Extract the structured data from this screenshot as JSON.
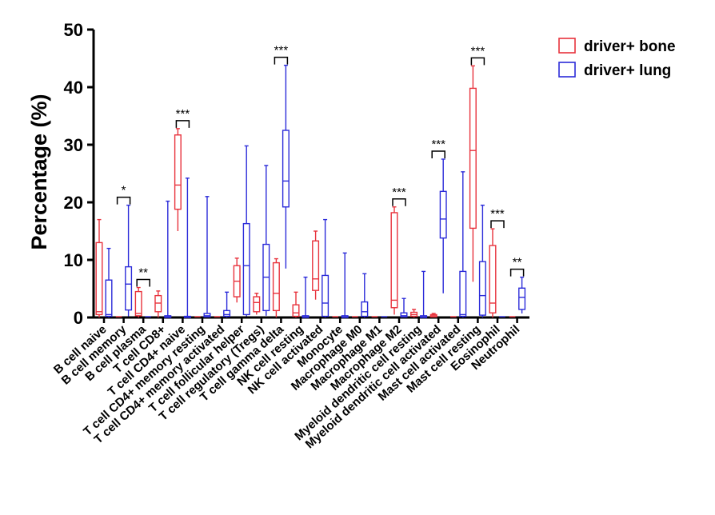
{
  "chart_data": {
    "type": "box",
    "title": "",
    "xlabel": "",
    "ylabel": "Percentage (%)",
    "ylim": [
      0,
      50
    ],
    "yticks": [
      0,
      10,
      20,
      30,
      40,
      50
    ],
    "grid": false,
    "legend_position": "top-right",
    "categories": [
      "B cell naive",
      "B cell memory",
      "B cell plasma",
      "T cell CD8+",
      "T cell CD4+ naive",
      "T cell CD4+ memory resting",
      "T cell CD4+ memory activated",
      "T cell follicular helper",
      "T cell regulatory (Tregs)",
      "T cell gamma delta",
      "NK cell resting",
      "NK cell activated",
      "Monocyte",
      "Macrophage M0",
      "Macrophage M1",
      "Macrophage M2",
      "Myeloid dendritic cell resting",
      "Myeloid dendritic cell activated",
      "Mast cell activated",
      "Mast cell resting",
      "Eosinophil",
      "Neutrophil"
    ],
    "series": [
      {
        "name": "driver+ bone",
        "color": "#e8323c",
        "boxes": [
          {
            "min": 0,
            "q1": 0.5,
            "median": 1.0,
            "q3": 13.0,
            "max": 17.0
          },
          {
            "min": 0,
            "q1": 0,
            "median": 0,
            "q3": 0,
            "max": 0
          },
          {
            "min": 0,
            "q1": 0.3,
            "median": 0.7,
            "q3": 4.5,
            "max": 5.2
          },
          {
            "min": 0,
            "q1": 1.0,
            "median": 2.5,
            "q3": 3.8,
            "max": 4.6
          },
          {
            "min": 15.0,
            "q1": 18.8,
            "median": 23.0,
            "q3": 31.7,
            "max": 32.8
          },
          {
            "min": 0,
            "q1": 0,
            "median": 0,
            "q3": 0,
            "max": 0
          },
          {
            "min": 0,
            "q1": 0,
            "median": 0,
            "q3": 0,
            "max": 0
          },
          {
            "min": 2.6,
            "q1": 3.6,
            "median": 6.3,
            "q3": 9.0,
            "max": 10.3
          },
          {
            "min": 0.5,
            "q1": 1.0,
            "median": 2.6,
            "q3": 3.6,
            "max": 4.2
          },
          {
            "min": 0,
            "q1": 1.2,
            "median": 4.2,
            "q3": 9.5,
            "max": 10.2
          },
          {
            "min": 0,
            "q1": 0.2,
            "median": 0.8,
            "q3": 2.2,
            "max": 4.4
          },
          {
            "min": 3.1,
            "q1": 4.7,
            "median": 6.7,
            "q3": 13.3,
            "max": 15.0
          },
          {
            "min": 0,
            "q1": 0,
            "median": 0,
            "q3": 0,
            "max": 0
          },
          {
            "min": 0,
            "q1": 0,
            "median": 0,
            "q3": 0,
            "max": 0
          },
          {
            "min": 0,
            "q1": 0,
            "median": 0,
            "q3": 0,
            "max": 0
          },
          {
            "min": 0.5,
            "q1": 1.7,
            "median": 3.0,
            "q3": 18.2,
            "max": 19.2
          },
          {
            "min": 0,
            "q1": 0.2,
            "median": 0.5,
            "q3": 0.9,
            "max": 1.4
          },
          {
            "min": 0,
            "q1": 0.1,
            "median": 0.3,
            "q3": 0.5,
            "max": 0.7
          },
          {
            "min": 0,
            "q1": 0,
            "median": 0,
            "q3": 0,
            "max": 0
          },
          {
            "min": 6.2,
            "q1": 15.5,
            "median": 29.0,
            "q3": 39.8,
            "max": 43.7
          },
          {
            "min": 0,
            "q1": 0.8,
            "median": 2.5,
            "q3": 12.5,
            "max": 15.4
          },
          {
            "min": 0,
            "q1": 0,
            "median": 0,
            "q3": 0,
            "max": 0
          }
        ]
      },
      {
        "name": "driver+ lung",
        "color": "#2b2bd9",
        "boxes": [
          {
            "min": 0,
            "q1": 0.2,
            "median": 0.5,
            "q3": 6.5,
            "max": 12.0
          },
          {
            "min": 0.2,
            "q1": 1.3,
            "median": 5.8,
            "q3": 8.8,
            "max": 19.5
          },
          {
            "min": 0,
            "q1": 0,
            "median": 0,
            "q3": 0,
            "max": 0
          },
          {
            "min": 0,
            "q1": 0,
            "median": 0.1,
            "q3": 0.3,
            "max": 20.2
          },
          {
            "min": 0,
            "q1": 0,
            "median": 0.1,
            "q3": 0.2,
            "max": 24.2
          },
          {
            "min": 0,
            "q1": 0.1,
            "median": 0.3,
            "q3": 0.7,
            "max": 21.0
          },
          {
            "min": 0,
            "q1": 0.2,
            "median": 0.5,
            "q3": 1.2,
            "max": 4.4
          },
          {
            "min": 0.2,
            "q1": 0.5,
            "median": 9.0,
            "q3": 16.3,
            "max": 29.8
          },
          {
            "min": 0.3,
            "q1": 1.2,
            "median": 7.0,
            "q3": 12.7,
            "max": 26.4
          },
          {
            "min": 8.5,
            "q1": 19.2,
            "median": 23.7,
            "q3": 32.5,
            "max": 43.8
          },
          {
            "min": 0,
            "q1": 0,
            "median": 0.1,
            "q3": 0.3,
            "max": 7.0
          },
          {
            "min": 0,
            "q1": 0.2,
            "median": 2.5,
            "q3": 7.3,
            "max": 17.0
          },
          {
            "min": 0,
            "q1": 0,
            "median": 0.1,
            "q3": 0.3,
            "max": 11.2
          },
          {
            "min": 0,
            "q1": 0.2,
            "median": 1.0,
            "q3": 2.7,
            "max": 7.6
          },
          {
            "min": 0,
            "q1": 0,
            "median": 0,
            "q3": 0,
            "max": 0
          },
          {
            "min": 0,
            "q1": 0.1,
            "median": 0.3,
            "q3": 0.8,
            "max": 3.3
          },
          {
            "min": 0,
            "q1": 0,
            "median": 0.1,
            "q3": 0.3,
            "max": 8.0
          },
          {
            "min": 4.2,
            "q1": 13.8,
            "median": 17.1,
            "q3": 21.9,
            "max": 27.5
          },
          {
            "min": 0,
            "q1": 0.2,
            "median": 0.5,
            "q3": 8.0,
            "max": 25.3
          },
          {
            "min": 0,
            "q1": 0.4,
            "median": 3.8,
            "q3": 9.7,
            "max": 19.5
          },
          {
            "min": 0,
            "q1": 0,
            "median": 0,
            "q3": 0,
            "max": 0
          },
          {
            "min": 0.7,
            "q1": 1.4,
            "median": 3.5,
            "q3": 5.1,
            "max": 7.0
          }
        ]
      }
    ],
    "significance": [
      {
        "category_index": 1,
        "label": "*"
      },
      {
        "category_index": 2,
        "label": "**"
      },
      {
        "category_index": 4,
        "label": "***"
      },
      {
        "category_index": 9,
        "label": "***"
      },
      {
        "category_index": 15,
        "label": "***"
      },
      {
        "category_index": 17,
        "label": "***"
      },
      {
        "category_index": 19,
        "label": "***"
      },
      {
        "category_index": 20,
        "label": "***"
      },
      {
        "category_index": 21,
        "label": "**"
      }
    ]
  }
}
